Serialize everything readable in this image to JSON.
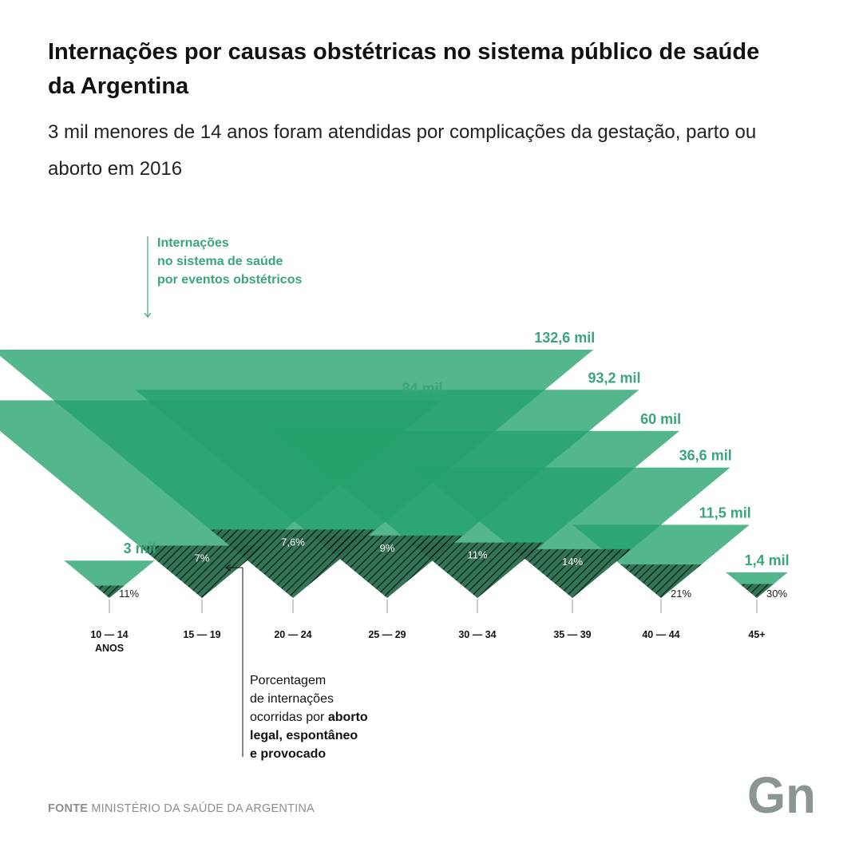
{
  "title": "Internações por causas obstétricas no sistema público de saúde da Argentina",
  "subtitle": "3 mil menores de 14 anos foram atendidas por complicações da gestação, parto ou aborto em 2016",
  "annotation_top": [
    "Internações",
    "no sistema de saúde",
    "por eventos obstétricos"
  ],
  "note": {
    "line1": "Porcentagem",
    "line2": "de internações",
    "line3_plain": "ocorridas por ",
    "line3_bold": "aborto",
    "line4": "legal, espontâneo",
    "line5": "e provocado"
  },
  "source": {
    "label": "FONTE",
    "text": "MINISTÉRIO DA SAÚDE DA ARGENTINA"
  },
  "logo": {
    "text": "Gn"
  },
  "colors": {
    "fill": "#23a26b",
    "label": "#3aa57a",
    "hatch": "#1a1a1a",
    "axis": "#999999",
    "logo": "#8c9690"
  },
  "chart_data": {
    "type": "area",
    "description_units": "internações (mil)",
    "categories": [
      "10 — 14\nANOS",
      "15 — 19",
      "20 — 24",
      "25 — 29",
      "30 — 34",
      "35 — 39",
      "40 — 44",
      "45+"
    ],
    "category_labels": [
      [
        "10 — 14",
        "ANOS"
      ],
      [
        "15 — 19"
      ],
      [
        "20 — 24"
      ],
      [
        "25 — 29"
      ],
      [
        "30 — 34"
      ],
      [
        "35 — 39"
      ],
      [
        "40 — 44"
      ],
      [
        "45+"
      ]
    ],
    "series": [
      {
        "name": "Internações no sistema de saúde por eventos obstétricos",
        "values": [
          3,
          84,
          132.6,
          93.2,
          60,
          36.6,
          11.5,
          1.4
        ],
        "labels": [
          "3 mil",
          "84 mil",
          "132,6 mil",
          "93,2 mil",
          "60 mil",
          "36,6 mil",
          "11,5 mil",
          "1,4 mil"
        ]
      },
      {
        "name": "Porcentagem de internações ocorridas por aborto legal, espontâneo e provocado",
        "values": [
          11,
          7,
          7.6,
          9,
          11,
          14,
          21,
          30
        ],
        "labels": [
          "11%",
          "7%",
          "7,6%",
          "9%",
          "11%",
          "14%",
          "21%",
          "30%"
        ]
      }
    ]
  }
}
